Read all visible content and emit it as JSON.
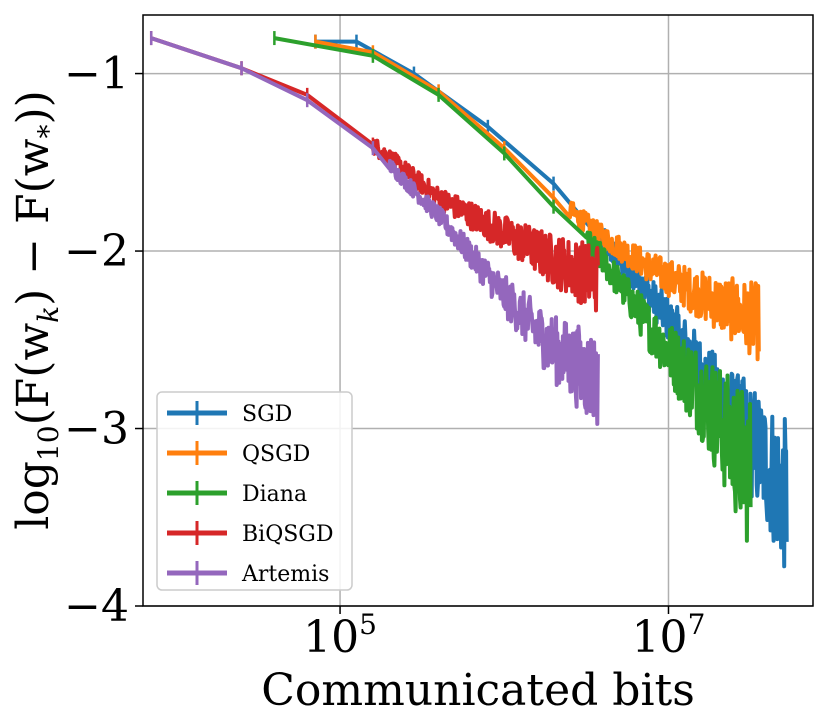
{
  "chart_data": {
    "type": "line",
    "xlabel": "Communicated bits",
    "ylabel": "log10(F(w_k) − F(w_*))",
    "ylabel_parts": {
      "log": "log",
      "sub": "10",
      "rest": "(F(w",
      "k": "k",
      "mid": ") − F(w",
      "star": "*",
      "end": "))"
    },
    "x_scale": "log10",
    "xlim_log10": [
      3.8,
      7.88
    ],
    "ylim": [
      -4.0,
      -0.67
    ],
    "x_ticks": [
      {
        "log10": 5,
        "base": "10",
        "exp": "5"
      },
      {
        "log10": 7,
        "base": "10",
        "exp": "7"
      }
    ],
    "y_ticks": [
      {
        "value": -1,
        "label": "−1"
      },
      {
        "value": -2,
        "label": "−2"
      },
      {
        "value": -3,
        "label": "−3"
      },
      {
        "value": -4,
        "label": "−4"
      }
    ],
    "grid": true,
    "legend_position": "lower-left",
    "series": [
      {
        "name": "SGD",
        "color": "#1f77b4",
        "points": [
          [
            4.85,
            -0.82
          ],
          [
            5.1,
            -0.82
          ],
          [
            5.45,
            -1.0
          ],
          [
            5.9,
            -1.3
          ],
          [
            6.3,
            -1.62
          ],
          [
            6.6,
            -1.95
          ],
          [
            6.85,
            -2.2
          ],
          [
            7.05,
            -2.45
          ],
          [
            7.25,
            -2.75
          ],
          [
            7.45,
            -3.0
          ],
          [
            7.6,
            -3.2
          ],
          [
            7.72,
            -3.4
          ]
        ],
        "noise_start_log10": 6.6,
        "noise_amp": [
          0.08,
          0.45
        ],
        "x_end_log10": 7.72
      },
      {
        "name": "QSGD",
        "color": "#ff7f0e",
        "points": [
          [
            4.85,
            -0.82
          ],
          [
            5.2,
            -0.88
          ],
          [
            5.6,
            -1.1
          ],
          [
            6.0,
            -1.42
          ],
          [
            6.3,
            -1.7
          ],
          [
            6.6,
            -1.92
          ],
          [
            6.9,
            -2.1
          ],
          [
            7.2,
            -2.25
          ],
          [
            7.55,
            -2.4
          ]
        ],
        "noise_start_log10": 6.4,
        "noise_amp": [
          0.06,
          0.22
        ],
        "x_end_log10": 7.55
      },
      {
        "name": "Diana",
        "color": "#2ca02c",
        "points": [
          [
            4.6,
            -0.8
          ],
          [
            5.2,
            -0.9
          ],
          [
            5.6,
            -1.12
          ],
          [
            6.0,
            -1.45
          ],
          [
            6.3,
            -1.75
          ],
          [
            6.6,
            -2.05
          ],
          [
            6.9,
            -2.45
          ],
          [
            7.2,
            -2.8
          ],
          [
            7.5,
            -3.25
          ]
        ],
        "noise_start_log10": 6.5,
        "noise_amp": [
          0.08,
          0.45
        ],
        "x_end_log10": 7.5
      },
      {
        "name": "BiQSGD",
        "color": "#d62728",
        "points": [
          [
            3.85,
            -0.8
          ],
          [
            4.4,
            -0.97
          ],
          [
            4.8,
            -1.12
          ],
          [
            5.2,
            -1.4
          ],
          [
            5.6,
            -1.7
          ],
          [
            6.0,
            -1.9
          ],
          [
            6.3,
            -2.05
          ],
          [
            6.55,
            -2.15
          ]
        ],
        "noise_start_log10": 5.2,
        "noise_amp": [
          0.05,
          0.2
        ],
        "x_end_log10": 6.57
      },
      {
        "name": "Artemis",
        "color": "#9467bd",
        "points": [
          [
            3.85,
            -0.8
          ],
          [
            4.4,
            -0.97
          ],
          [
            4.8,
            -1.15
          ],
          [
            5.2,
            -1.42
          ],
          [
            5.6,
            -1.8
          ],
          [
            6.0,
            -2.25
          ],
          [
            6.3,
            -2.55
          ],
          [
            6.55,
            -2.72
          ]
        ],
        "noise_start_log10": 5.3,
        "noise_amp": [
          0.04,
          0.28
        ],
        "x_end_log10": 6.57
      }
    ]
  }
}
